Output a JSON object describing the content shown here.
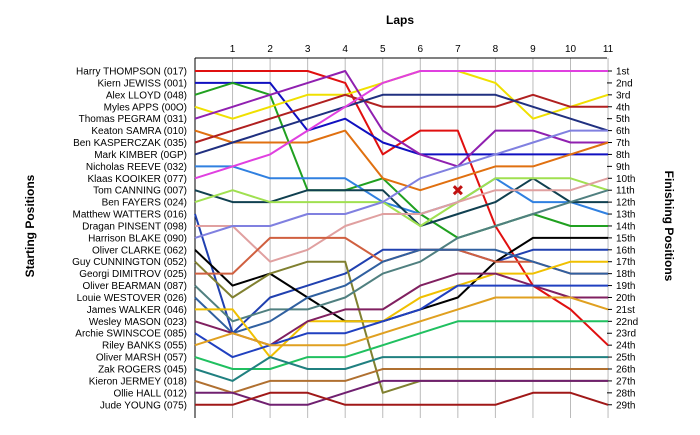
{
  "chart_data": {
    "type": "line",
    "title": "Laps",
    "xlabel": "Laps",
    "ylabel_left": "Starting Positions",
    "ylabel_right": "Finishing Positions",
    "laps": [
      "1",
      "2",
      "3",
      "4",
      "5",
      "6",
      "7",
      "8",
      "9",
      "10",
      "11"
    ],
    "drivers": [
      "Harry THOMPSON (017)",
      "Kiern JEWISS (001)",
      "Alex LLOYD (048)",
      "Myles APPS (00O)",
      "Thomas PEGRAM (031)",
      "Keaton SAMRA (010)",
      "Ben KASPERCZAK (035)",
      "Mark KIMBER (0GP)",
      "Nicholas REEVE (032)",
      "Klaas KOOIKER (077)",
      "Tom CANNING (007)",
      "Ben FAYERS (024)",
      "Matthew WATTERS (016)",
      "Dragan PINSENT (098)",
      "Harrison BLAKE (090)",
      "Oliver CLARKE (062)",
      "Guy CUNNINGTON (052)",
      "Georgi DIMITROV (025)",
      "Oliver BEARMAN (087)",
      "Louie WESTOVER (026)",
      "James WALKER (046)",
      "Wesley MASON (023)",
      "Archie SWINSCOE (085)",
      "Riley BANKS (055)",
      "Oliver MARSH (057)",
      "Zak ROGERS (045)",
      "Kieron JERMEY (018)",
      "Ollie HALL (012)",
      "Jude YOUNG (075)"
    ],
    "finishing_positions": [
      "1st",
      "2nd",
      "3rd",
      "4th",
      "5th",
      "6th",
      "7th",
      "8th",
      "9th",
      "10th",
      "11th",
      "12th",
      "13th",
      "14th",
      "15th",
      "16th",
      "17th",
      "18th",
      "19th",
      "20th",
      "21st",
      "22nd",
      "23rd",
      "24th",
      "25th",
      "26th",
      "27th",
      "28th",
      "29th"
    ],
    "series": [
      {
        "color": "#e01010",
        "positions": [
          1,
          1,
          1,
          1,
          2,
          8,
          6,
          6,
          14,
          19,
          21,
          24
        ]
      },
      {
        "color": "#1010c0",
        "positions": [
          2,
          2,
          2,
          6,
          5,
          7,
          8,
          8,
          8,
          8,
          8,
          8
        ]
      },
      {
        "color": "#20a020",
        "positions": [
          3,
          2,
          3,
          11,
          11,
          10,
          13,
          15,
          14,
          13,
          14,
          14
        ]
      },
      {
        "color": "#f0e000",
        "positions": [
          4,
          5,
          4,
          3,
          3,
          2,
          1,
          1,
          2,
          5,
          4,
          3
        ]
      },
      {
        "color": "#9020b0",
        "positions": [
          5,
          4,
          3,
          2,
          1,
          6,
          8,
          9,
          6,
          6,
          7,
          7
        ]
      },
      {
        "color": "#e07010",
        "positions": [
          6,
          7,
          7,
          7,
          6,
          10,
          11,
          10,
          9,
          9,
          8,
          7
        ]
      },
      {
        "color": "#b02020",
        "positions": [
          7,
          6,
          5,
          4,
          3,
          4,
          4,
          4,
          4,
          3,
          4,
          4
        ]
      },
      {
        "color": "#203080",
        "positions": [
          8,
          7,
          6,
          5,
          4,
          3,
          3,
          3,
          3,
          4,
          5,
          6
        ]
      },
      {
        "color": "#3080e0",
        "positions": [
          9,
          9,
          10,
          10,
          10,
          12,
          13,
          12,
          10,
          12,
          12,
          13
        ]
      },
      {
        "color": "#e040e0",
        "positions": [
          10,
          9,
          8,
          6,
          4,
          2,
          1,
          1,
          1,
          1,
          1,
          1
        ]
      },
      {
        "color": "#104050",
        "positions": [
          11,
          12,
          12,
          11,
          11,
          11,
          14,
          13,
          12,
          10,
          12,
          12
        ]
      },
      {
        "color": "#a0e050",
        "positions": [
          12,
          11,
          12,
          12,
          12,
          12,
          14,
          12,
          10,
          10,
          10,
          11
        ]
      },
      {
        "color": "#2040b0",
        "positions": [
          13,
          23,
          20,
          19,
          18,
          16,
          16,
          16,
          17,
          16,
          16,
          16
        ]
      },
      {
        "color": "#e0a0a0",
        "positions": [
          14,
          14,
          17,
          16,
          14,
          13,
          13,
          12,
          11,
          11,
          11,
          10
        ]
      },
      {
        "color": "#8080e0",
        "positions": [
          15,
          14,
          14,
          13,
          13,
          12,
          10,
          9,
          8,
          7,
          6,
          6
        ]
      },
      {
        "color": "#000000",
        "positions": [
          16,
          19,
          18,
          20,
          22,
          22,
          21,
          20,
          17,
          15,
          15,
          15
        ]
      },
      {
        "color": "#808030",
        "positions": [
          17,
          20,
          18,
          17,
          17,
          28,
          27,
          27,
          27,
          27,
          27,
          27
        ]
      },
      {
        "color": "#d06040",
        "positions": [
          18,
          18,
          15,
          15,
          15,
          17,
          16,
          16,
          17,
          17,
          18,
          18
        ]
      },
      {
        "color": "#508080",
        "positions": [
          19,
          22,
          21,
          21,
          20,
          18,
          17,
          15,
          14,
          13,
          12,
          11
        ]
      },
      {
        "color": "#3060a0",
        "positions": [
          20,
          23,
          22,
          20,
          19,
          17,
          16,
          16,
          16,
          17,
          18,
          18
        ]
      },
      {
        "color": "#f0c000",
        "positions": [
          21,
          21,
          25,
          22,
          22,
          22,
          20,
          19,
          18,
          18,
          17,
          17
        ]
      },
      {
        "color": "#802060",
        "positions": [
          22,
          23,
          24,
          22,
          21,
          21,
          19,
          18,
          18,
          19,
          20,
          20
        ]
      },
      {
        "color": "#2040c0",
        "positions": [
          23,
          25,
          24,
          23,
          23,
          22,
          21,
          19,
          19,
          19,
          19,
          19
        ]
      },
      {
        "color": "#e0a020",
        "positions": [
          24,
          23,
          24,
          24,
          24,
          23,
          22,
          21,
          20,
          20,
          20,
          21
        ]
      },
      {
        "color": "#20c060",
        "positions": [
          25,
          26,
          26,
          25,
          25,
          24,
          23,
          22,
          22,
          22,
          22,
          22
        ]
      },
      {
        "color": "#208080",
        "positions": [
          26,
          27,
          25,
          26,
          26,
          25,
          25,
          25,
          25,
          25,
          25,
          25
        ]
      },
      {
        "color": "#b07030",
        "positions": [
          27,
          28,
          27,
          27,
          27,
          26,
          26,
          26,
          26,
          26,
          26,
          26
        ]
      },
      {
        "color": "#702070",
        "positions": [
          28,
          28,
          29,
          29,
          28,
          27,
          27,
          27,
          27,
          27,
          27,
          27
        ]
      },
      {
        "color": "#a01818",
        "positions": [
          29,
          29,
          28,
          28,
          29,
          29,
          29,
          29,
          29,
          28,
          28,
          29
        ]
      }
    ],
    "retirement_marker": {
      "lap": 7,
      "position": 11,
      "color": "#c01010"
    },
    "grid": true
  }
}
